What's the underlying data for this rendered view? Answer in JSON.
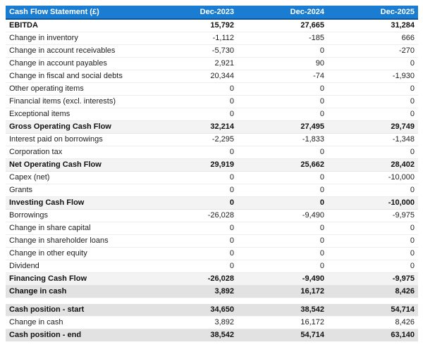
{
  "header": {
    "title": "Cash Flow Statement (£)",
    "columns": [
      "Dec-2023",
      "Dec-2024",
      "Dec-2025"
    ]
  },
  "colors": {
    "header_bg": "#1a7dd2",
    "header_border": "#0f5496",
    "header_text": "#ffffff",
    "subtotal_row_bg": "#f3f3f3",
    "total_row_bg": "#e2e2e2",
    "body_text": "#1d1d1d"
  },
  "main_table": {
    "rows": [
      {
        "label": "EBITDA",
        "values": [
          "15,792",
          "27,665",
          "31,284"
        ],
        "style": "bold"
      },
      {
        "label": "Change in inventory",
        "values": [
          "-1,112",
          "-185",
          "666"
        ],
        "style": "normal"
      },
      {
        "label": "Change in account receivables",
        "values": [
          "-5,730",
          "0",
          "-270"
        ],
        "style": "normal"
      },
      {
        "label": "Change in account payables",
        "values": [
          "2,921",
          "90",
          "0"
        ],
        "style": "normal"
      },
      {
        "label": "Change in fiscal and social debts",
        "values": [
          "20,344",
          "-74",
          "-1,930"
        ],
        "style": "normal"
      },
      {
        "label": "Other operating items",
        "values": [
          "0",
          "0",
          "0"
        ],
        "style": "normal"
      },
      {
        "label": "Financial items (excl. interests)",
        "values": [
          "0",
          "0",
          "0"
        ],
        "style": "normal"
      },
      {
        "label": "Exceptional items",
        "values": [
          "0",
          "0",
          "0"
        ],
        "style": "normal"
      },
      {
        "label": "Gross Operating Cash Flow",
        "values": [
          "32,214",
          "27,495",
          "29,749"
        ],
        "style": "subtotal"
      },
      {
        "label": "Interest paid on borrowings",
        "values": [
          "-2,295",
          "-1,833",
          "-1,348"
        ],
        "style": "normal"
      },
      {
        "label": "Corporation tax",
        "values": [
          "0",
          "0",
          "0"
        ],
        "style": "normal"
      },
      {
        "label": "Net Operating Cash Flow",
        "values": [
          "29,919",
          "25,662",
          "28,402"
        ],
        "style": "subtotal"
      },
      {
        "label": "Capex (net)",
        "values": [
          "0",
          "0",
          "-10,000"
        ],
        "style": "normal"
      },
      {
        "label": "Grants",
        "values": [
          "0",
          "0",
          "0"
        ],
        "style": "normal"
      },
      {
        "label": "Investing Cash Flow",
        "values": [
          "0",
          "0",
          "-10,000"
        ],
        "style": "subtotal"
      },
      {
        "label": "Borrowings",
        "values": [
          "-26,028",
          "-9,490",
          "-9,975"
        ],
        "style": "normal"
      },
      {
        "label": "Change in share capital",
        "values": [
          "0",
          "0",
          "0"
        ],
        "style": "normal"
      },
      {
        "label": "Change in shareholder loans",
        "values": [
          "0",
          "0",
          "0"
        ],
        "style": "normal"
      },
      {
        "label": "Change in other equity",
        "values": [
          "0",
          "0",
          "0"
        ],
        "style": "normal"
      },
      {
        "label": "Dividend",
        "values": [
          "0",
          "0",
          "0"
        ],
        "style": "normal"
      },
      {
        "label": "Financing Cash Flow",
        "values": [
          "-26,028",
          "-9,490",
          "-9,975"
        ],
        "style": "subtotal"
      },
      {
        "label": "Change in cash",
        "values": [
          "3,892",
          "16,172",
          "8,426"
        ],
        "style": "total"
      }
    ]
  },
  "cash_position_table": {
    "rows": [
      {
        "label": "Cash position - start",
        "values": [
          "34,650",
          "38,542",
          "54,714"
        ],
        "style": "total"
      },
      {
        "label": "Change in cash",
        "values": [
          "3,892",
          "16,172",
          "8,426"
        ],
        "style": "normal"
      },
      {
        "label": "Cash position - end",
        "values": [
          "38,542",
          "54,714",
          "63,140"
        ],
        "style": "total"
      }
    ]
  },
  "chart_data": {
    "type": "table",
    "title": "Cash Flow Statement (£)",
    "columns": [
      "Dec-2023",
      "Dec-2024",
      "Dec-2025"
    ],
    "rows": [
      [
        "EBITDA",
        15792,
        27665,
        31284
      ],
      [
        "Change in inventory",
        -1112,
        -185,
        666
      ],
      [
        "Change in account receivables",
        -5730,
        0,
        -270
      ],
      [
        "Change in account payables",
        2921,
        90,
        0
      ],
      [
        "Change in fiscal and social debts",
        20344,
        -74,
        -1930
      ],
      [
        "Other operating items",
        0,
        0,
        0
      ],
      [
        "Financial items (excl. interests)",
        0,
        0,
        0
      ],
      [
        "Exceptional items",
        0,
        0,
        0
      ],
      [
        "Gross Operating Cash Flow",
        32214,
        27495,
        29749
      ],
      [
        "Interest paid on borrowings",
        -2295,
        -1833,
        -1348
      ],
      [
        "Corporation tax",
        0,
        0,
        0
      ],
      [
        "Net Operating Cash Flow",
        29919,
        25662,
        28402
      ],
      [
        "Capex (net)",
        0,
        0,
        -10000
      ],
      [
        "Grants",
        0,
        0,
        0
      ],
      [
        "Investing Cash Flow",
        0,
        0,
        -10000
      ],
      [
        "Borrowings",
        -26028,
        -9490,
        -9975
      ],
      [
        "Change in share capital",
        0,
        0,
        0
      ],
      [
        "Change in shareholder loans",
        0,
        0,
        0
      ],
      [
        "Change in other equity",
        0,
        0,
        0
      ],
      [
        "Dividend",
        0,
        0,
        0
      ],
      [
        "Financing Cash Flow",
        -26028,
        -9490,
        -9975
      ],
      [
        "Change in cash",
        3892,
        16172,
        8426
      ],
      [
        "Cash position - start",
        34650,
        38542,
        54714
      ],
      [
        "Change in cash",
        3892,
        16172,
        8426
      ],
      [
        "Cash position - end",
        38542,
        54714,
        63140
      ]
    ]
  }
}
